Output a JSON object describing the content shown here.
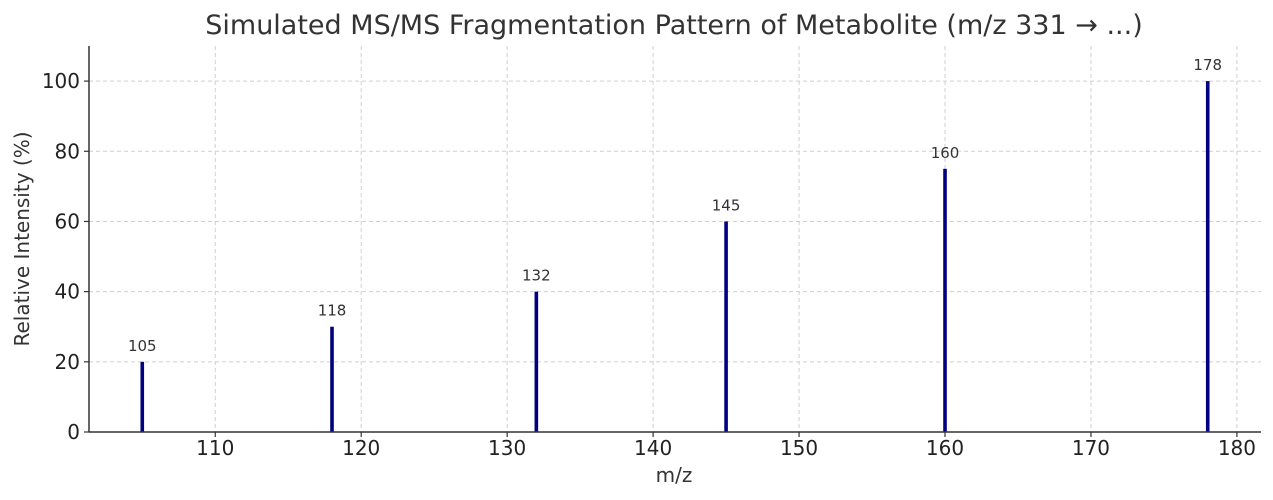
{
  "chart_data": {
    "type": "bar",
    "title": "Simulated MS/MS Fragmentation Pattern of Metabolite (m/z 331 → ...)",
    "xlabel": "m/z",
    "ylabel": "Relative Intensity (%)",
    "xlim": [
      101.35,
      181.65
    ],
    "ylim": [
      0,
      110
    ],
    "xticks": [
      110,
      120,
      130,
      140,
      150,
      160,
      170,
      180
    ],
    "yticks": [
      0,
      20,
      40,
      60,
      80,
      100
    ],
    "grid": true,
    "bar_color": "#000080",
    "peaks": [
      {
        "mz": 105,
        "intensity": 20,
        "label": "105"
      },
      {
        "mz": 118,
        "intensity": 30,
        "label": "118"
      },
      {
        "mz": 132,
        "intensity": 40,
        "label": "132"
      },
      {
        "mz": 145,
        "intensity": 60,
        "label": "145"
      },
      {
        "mz": 160,
        "intensity": 75,
        "label": "160"
      },
      {
        "mz": 178,
        "intensity": 100,
        "label": "178"
      }
    ]
  }
}
